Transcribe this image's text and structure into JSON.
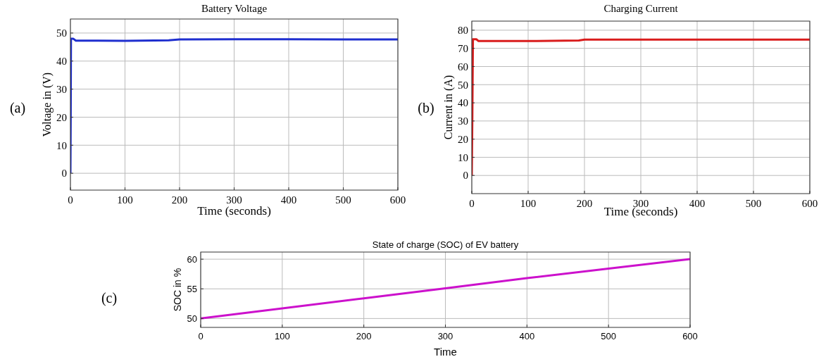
{
  "chart_data": [
    {
      "type": "line",
      "title": "Battery Voltage",
      "xlabel": "Time (seconds)",
      "ylabel": "Voltage in (V)",
      "annotations": [
        "(a)"
      ],
      "x": [
        0,
        0.5,
        1,
        5,
        10,
        50,
        100,
        180,
        200,
        300,
        400,
        500,
        600
      ],
      "series": [
        {
          "color": "#1f2fcf",
          "values": [
            0,
            20,
            48,
            48,
            47.3,
            47.3,
            47.2,
            47.4,
            47.7,
            47.8,
            47.8,
            47.7,
            47.7
          ]
        }
      ],
      "xlim": [
        0,
        600
      ],
      "xticks": [
        0,
        100,
        200,
        300,
        400,
        500,
        600
      ],
      "ylim": [
        -6,
        55
      ],
      "yticks": [
        0,
        10,
        20,
        30,
        40,
        50
      ],
      "grid": true
    },
    {
      "type": "line",
      "title": "Charging Current",
      "xlabel": "Time (seconds)",
      "ylabel": "Current in (A)",
      "annotations": [
        "(b)"
      ],
      "x": [
        0,
        1,
        2,
        8,
        12,
        50,
        100,
        190,
        200,
        300,
        400,
        500,
        600
      ],
      "series": [
        {
          "color": "#d91c1c",
          "values": [
            0,
            33,
            75,
            75,
            74,
            74,
            74,
            74.3,
            74.8,
            74.8,
            74.8,
            74.8,
            74.8
          ]
        }
      ],
      "xlim": [
        0,
        600
      ],
      "xticks": [
        0,
        100,
        200,
        300,
        400,
        500,
        600
      ],
      "ylim": [
        -10,
        85
      ],
      "yticks": [
        0,
        10,
        20,
        30,
        40,
        50,
        60,
        70,
        80
      ],
      "grid": true
    },
    {
      "type": "line",
      "title": "State of charge (SOC) of EV battery",
      "xlabel": "Time",
      "ylabel": "SOC in %",
      "annotations": [
        "(c)"
      ],
      "x": [
        0,
        100,
        200,
        300,
        400,
        500,
        600
      ],
      "series": [
        {
          "color": "#cc11cc",
          "values": [
            50,
            51.7,
            53.4,
            55.1,
            56.8,
            58.4,
            60
          ]
        }
      ],
      "xlim": [
        0,
        600
      ],
      "xticks": [
        0,
        100,
        200,
        300,
        400,
        500,
        600
      ],
      "ylim": [
        48.5,
        61.2
      ],
      "yticks": [
        50,
        55,
        60
      ],
      "grid": true
    }
  ]
}
